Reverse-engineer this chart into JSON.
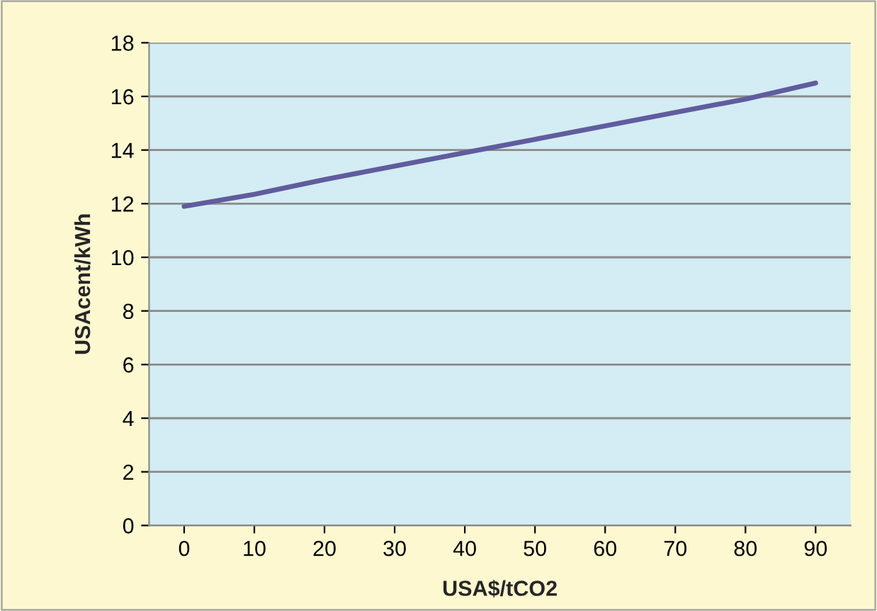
{
  "chart_data": {
    "type": "line",
    "xlabel": "USA$/tCO2",
    "ylabel": "USAcent/kWh",
    "categories": [
      "0",
      "10",
      "20",
      "30",
      "40",
      "50",
      "60",
      "70",
      "80",
      "90"
    ],
    "series": [
      {
        "color": "#605c9e",
        "values": [
          11.9,
          12.35,
          12.9,
          13.4,
          13.9,
          14.4,
          14.9,
          15.4,
          15.9,
          16.5
        ]
      }
    ],
    "ylim": [
      0,
      18
    ],
    "yticks": [
      0,
      2,
      4,
      6,
      8,
      10,
      12,
      14,
      16,
      18
    ],
    "grid": "y",
    "legend": false,
    "marker": "none",
    "line_style": "solid"
  }
}
